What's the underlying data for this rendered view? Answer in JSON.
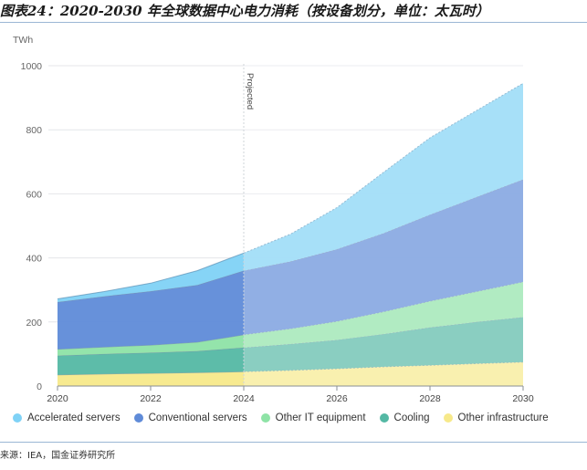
{
  "figure": {
    "title": "图表24：2020-2030 年全球数据中心电力消耗（按设备划分，单位：太瓦时）",
    "source": "来源：IEA，国金证券研究所"
  },
  "chart_data": {
    "type": "area",
    "stacked": true,
    "x": [
      2020,
      2021,
      2022,
      2023,
      2024,
      2025,
      2026,
      2027,
      2028,
      2029,
      2030
    ],
    "projected_from": 2024,
    "projection_label": "Projected",
    "ylabel": "TWh",
    "ylim": [
      0,
      1000
    ],
    "yticks": [
      0,
      200,
      400,
      600,
      800,
      1000
    ],
    "xticks": [
      2020,
      2022,
      2024,
      2026,
      2028,
      2030
    ],
    "grid": true,
    "legend_position": "bottom",
    "series": [
      {
        "name": "Other infrastructure",
        "color": "#f7e98a",
        "values": [
          35,
          38,
          40,
          42,
          45,
          49,
          54,
          60,
          65,
          70,
          75
        ]
      },
      {
        "name": "Cooling",
        "color": "#54b8a4",
        "values": [
          60,
          62,
          64,
          67,
          75,
          82,
          90,
          102,
          118,
          130,
          140
        ]
      },
      {
        "name": "Other IT equipment",
        "color": "#8ee3a6",
        "values": [
          20,
          22,
          24,
          28,
          40,
          48,
          58,
          70,
          82,
          95,
          110
        ]
      },
      {
        "name": "Conventional servers",
        "color": "#5f8bd8",
        "values": [
          147,
          158,
          168,
          178,
          200,
          210,
          225,
          245,
          270,
          295,
          320
        ]
      },
      {
        "name": "Accelerated servers",
        "color": "#7fd2f6",
        "values": [
          10,
          15,
          25,
          45,
          55,
          85,
          130,
          190,
          240,
          270,
          300
        ]
      }
    ]
  }
}
